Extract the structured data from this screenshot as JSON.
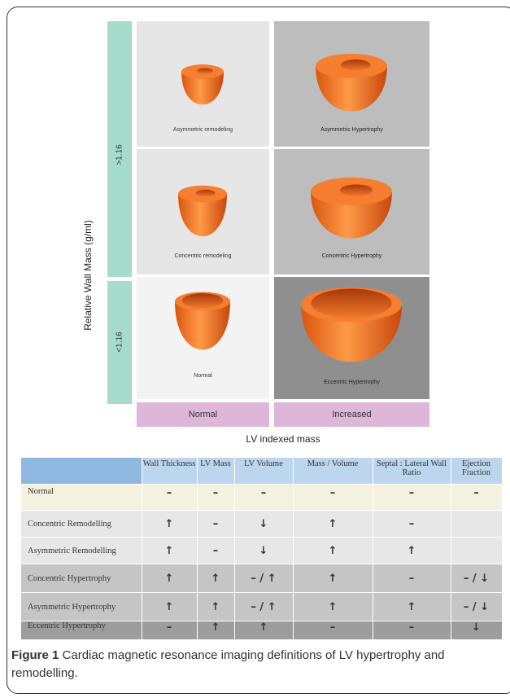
{
  "figure": {
    "y_axis_label": "Relative Wall Mass (g/ml)",
    "bands": [
      ">1.16",
      "<1.16"
    ],
    "x_categories": [
      "Normal",
      "Increased"
    ],
    "x_axis_label": "LV indexed mass",
    "cells": [
      {
        "label": "Asymmetric remodeling",
        "bg": "#e6e6e6"
      },
      {
        "label": "Asymmetric Hypertrophy",
        "bg": "#bdbdbd"
      },
      {
        "label": "Concentric remodeling",
        "bg": "#e6e6e6"
      },
      {
        "label": "Concentric Hypertrophy",
        "bg": "#bdbdbd"
      },
      {
        "label": "Normal",
        "bg": "#f3f3f3"
      },
      {
        "label": "Eccentric Hypertrophy",
        "bg": "#8f8f8f"
      }
    ]
  },
  "table": {
    "headers": [
      "",
      "Wall Thickness",
      "LV Mass",
      "LV Volume",
      "Mass / Volume",
      "Septal : Lateral Wall Ratio",
      "Ejection Fraction"
    ],
    "rows": [
      {
        "name": "Normal",
        "cells": [
          "–",
          "–",
          "–",
          "–",
          "–",
          "–"
        ]
      },
      {
        "name": "Concentric Remodelling",
        "cells": [
          "🡅",
          "–",
          "🡇",
          "🡅",
          "–",
          ""
        ]
      },
      {
        "name": "Asymmetric Remodelling",
        "cells": [
          "🡅",
          "–",
          "🡇",
          "🡅",
          "🡅",
          ""
        ]
      },
      {
        "name": "Concentric Hypertrophy",
        "cells": [
          "🡅",
          "🡅",
          "– / 🡅",
          "🡅",
          "–",
          "– / 🡇"
        ]
      },
      {
        "name": "Asymmetric Hypertrophy",
        "cells": [
          "🡅",
          "🡅",
          "– / 🡅",
          "🡅",
          "🡅",
          "– / 🡇"
        ]
      },
      {
        "name": "Eccentric Hypertrophy",
        "cells": [
          "–",
          "🡅",
          "🡅",
          "–",
          "–",
          "🡇"
        ]
      }
    ]
  },
  "caption": {
    "label": "Figure 1",
    "text": " Cardiac magnetic resonance imaging definitions of LV hypertrophy and remodelling."
  },
  "colors": {
    "band": "#a6dccc",
    "x_category": "#ddb6d8",
    "heart_outer": "#f07a2a",
    "heart_dark": "#c2410c"
  }
}
